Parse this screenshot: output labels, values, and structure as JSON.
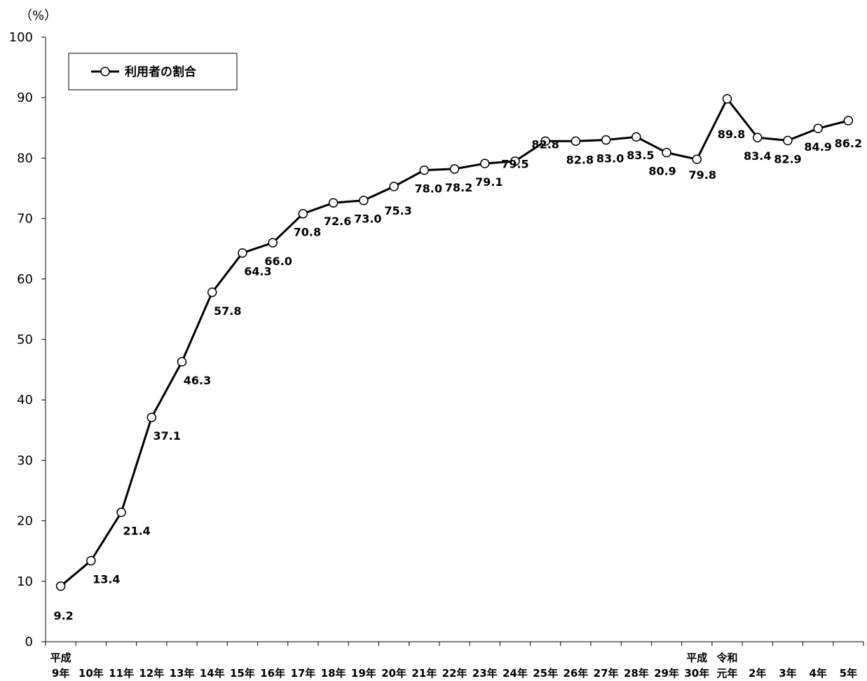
{
  "chart_data": {
    "type": "line",
    "title": "",
    "yunit": "（%）",
    "ylim": [
      0,
      100
    ],
    "yticks": [
      0,
      10,
      20,
      30,
      40,
      50,
      60,
      70,
      80,
      90,
      100
    ],
    "categories": [
      "9年",
      "10年",
      "11年",
      "12年",
      "13年",
      "14年",
      "15年",
      "16年",
      "17年",
      "18年",
      "19年",
      "20年",
      "21年",
      "22年",
      "23年",
      "24年",
      "25年",
      "26年",
      "27年",
      "28年",
      "29年",
      "30年",
      "元年",
      "2年",
      "3年",
      "4年",
      "5年"
    ],
    "era_labels": [
      {
        "text": "平成",
        "category_index": 0
      },
      {
        "text": "平成",
        "category_index": 21
      },
      {
        "text": "令和",
        "category_index": 22
      }
    ],
    "series": [
      {
        "name": "利用者の割合",
        "values": [
          9.2,
          13.4,
          21.4,
          37.1,
          46.3,
          57.8,
          64.3,
          66.0,
          70.8,
          72.6,
          73.0,
          75.3,
          78.0,
          78.2,
          79.1,
          79.5,
          82.8,
          82.8,
          83.0,
          83.5,
          80.9,
          79.8,
          89.8,
          83.4,
          82.9,
          84.9,
          86.2
        ],
        "labels": [
          "9.2",
          "13.4",
          "21.4",
          "37.1",
          "46.3",
          "57.8",
          "64.3",
          "66.0",
          "70.8",
          "72.6",
          "73.0",
          "75.3",
          "78.0",
          "78.2",
          "79.1",
          "79.5",
          "82.8",
          "82.8",
          "83.0",
          "83.5",
          "80.9",
          "79.8",
          "89.8",
          "83.4",
          "82.9",
          "84.9",
          "86.2"
        ]
      }
    ],
    "legend": {
      "position": "top-left",
      "label": "利用者の割合"
    },
    "grid": false,
    "colors": {
      "line": "#000000",
      "marker_fill": "#ffffff",
      "marker_stroke": "#000000"
    }
  }
}
